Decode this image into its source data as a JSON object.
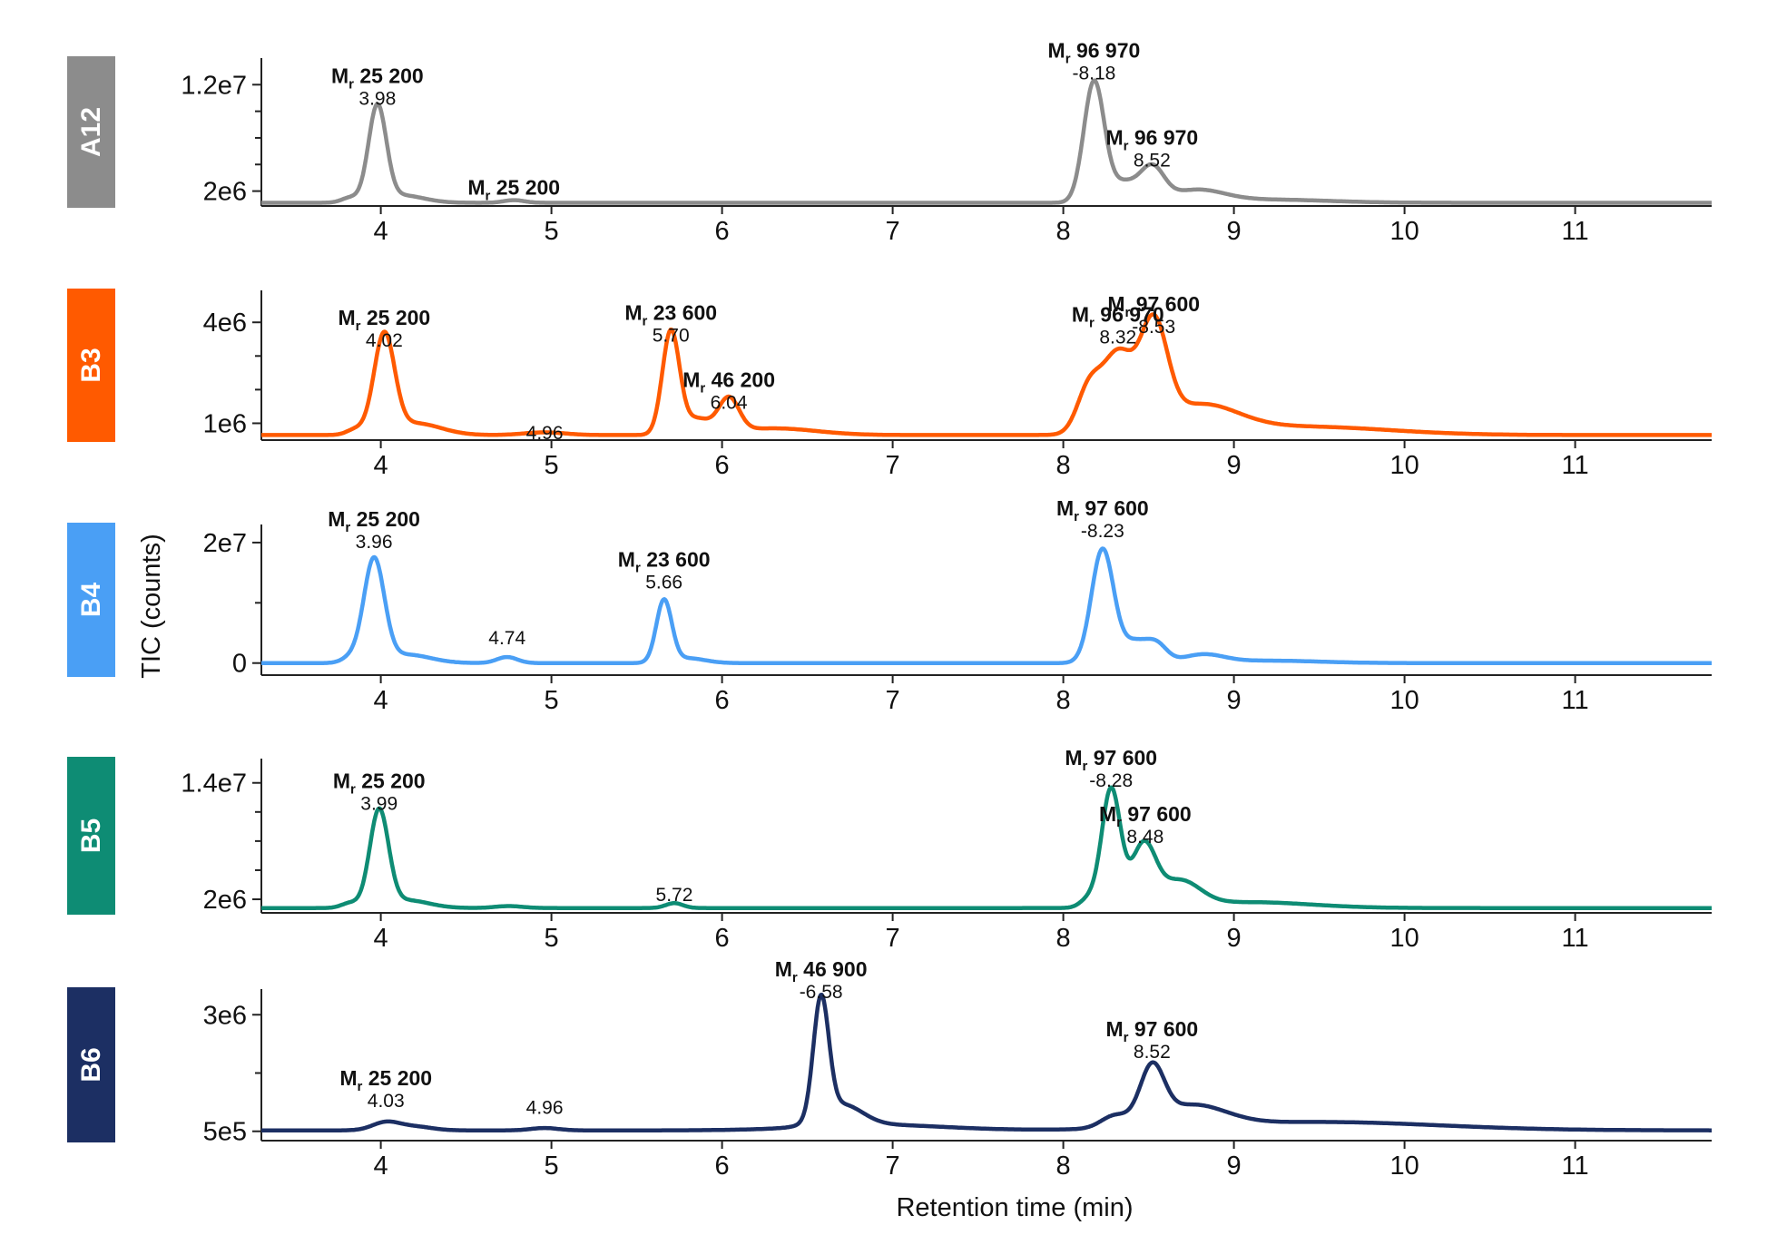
{
  "chart_data": {
    "type": "line",
    "xlabel": "Retention time (min)",
    "ylabel": "TIC (counts)",
    "xlim": [
      3.3,
      11.8
    ],
    "x_ticks": [
      4,
      5,
      6,
      7,
      8,
      9,
      10,
      11
    ],
    "panels": [
      {
        "sample": "A12",
        "color": "#8c8c8c",
        "ylim": [
          600000.0,
          14500000.0
        ],
        "y_ticks": [
          {
            "value": 12000000,
            "label": "1.2e7"
          },
          {
            "value": 2000000,
            "label": "2e6"
          }
        ],
        "y_minor_ticks": [
          4500000,
          7000000,
          9500000
        ],
        "baseline": 900000.0,
        "peaks": [
          {
            "rt": 3.82,
            "height": 450000.0,
            "sigma": 0.05
          },
          {
            "rt": 3.98,
            "height": 8900000.0,
            "sigma": 0.052
          },
          {
            "rt": 4.12,
            "height": 700000.0,
            "sigma": 0.13
          },
          {
            "rt": 4.78,
            "height": 250000.0,
            "sigma": 0.06
          },
          {
            "rt": 8.18,
            "height": 11300000.0,
            "sigma": 0.06
          },
          {
            "rt": 8.35,
            "height": 1800000.0,
            "sigma": 0.08
          },
          {
            "rt": 8.52,
            "height": 3100000.0,
            "sigma": 0.07
          },
          {
            "rt": 8.78,
            "height": 1100000.0,
            "sigma": 0.16
          },
          {
            "rt": 9.2,
            "height": 300000.0,
            "sigma": 0.35
          }
        ],
        "annotations": [
          {
            "rt": "3.98",
            "mass": "25 200",
            "mass_prefix": "M",
            "mass_sub": "r",
            "y": 8900000.0
          },
          {
            "rt": "",
            "mass": "25 200",
            "mass_prefix": "M",
            "mass_sub": "r",
            "y": 300000.0,
            "at": 4.78
          },
          {
            "rt": "-8.18",
            "mass": "96 970",
            "mass_prefix": "M",
            "mass_sub": "r",
            "y": 11300000.0
          },
          {
            "rt": "8.52",
            "mass": "96 970",
            "mass_prefix": "M",
            "mass_sub": "r",
            "y": 3100000.0
          }
        ]
      },
      {
        "sample": "B3",
        "color": "#ff5a00",
        "ylim": [
          500000.0,
          4950000.0
        ],
        "y_ticks": [
          {
            "value": 4000000,
            "label": "4e6"
          },
          {
            "value": 1000000,
            "label": "1e6"
          }
        ],
        "y_minor_ticks": [
          2000000,
          3000000
        ],
        "baseline": 650000.0,
        "peaks": [
          {
            "rt": 3.85,
            "height": 150000.0,
            "sigma": 0.05
          },
          {
            "rt": 4.02,
            "height": 2900000.0,
            "sigma": 0.06
          },
          {
            "rt": 4.2,
            "height": 350000.0,
            "sigma": 0.15
          },
          {
            "rt": 4.96,
            "height": 80000.0,
            "sigma": 0.12
          },
          {
            "rt": 5.7,
            "height": 3050000.0,
            "sigma": 0.05
          },
          {
            "rt": 5.85,
            "height": 450000.0,
            "sigma": 0.08
          },
          {
            "rt": 6.04,
            "height": 1000000.0,
            "sigma": 0.06
          },
          {
            "rt": 6.3,
            "height": 200000.0,
            "sigma": 0.25
          },
          {
            "rt": 8.15,
            "height": 1300000.0,
            "sigma": 0.07
          },
          {
            "rt": 8.32,
            "height": 2300000.0,
            "sigma": 0.09
          },
          {
            "rt": 8.53,
            "height": 3000000.0,
            "sigma": 0.08
          },
          {
            "rt": 8.8,
            "height": 800000.0,
            "sigma": 0.22
          },
          {
            "rt": 9.4,
            "height": 250000.0,
            "sigma": 0.5
          }
        ],
        "annotations": [
          {
            "rt": "4.02",
            "mass": "25 200",
            "mass_prefix": "M",
            "mass_sub": "r",
            "y": 2900000.0
          },
          {
            "rt": "4.96",
            "mass": "",
            "mass_prefix": "",
            "mass_sub": "",
            "y": 150000.0
          },
          {
            "rt": "5.70",
            "mass": "23 600",
            "mass_prefix": "M",
            "mass_sub": "r",
            "y": 3050000.0
          },
          {
            "rt": "6.04",
            "mass": "46 200",
            "mass_prefix": "M",
            "mass_sub": "r",
            "y": 1050000.0
          },
          {
            "rt": "8.32",
            "mass": "96 970",
            "mass_prefix": "M",
            "mass_sub": "r",
            "y": 3000000.0
          },
          {
            "rt": "-8.53",
            "mass": "97 600",
            "mass_prefix": "M",
            "mass_sub": "r",
            "y": 3300000.0
          }
        ]
      },
      {
        "sample": "B4",
        "color": "#4a9ff5",
        "ylim": [
          -2000000.0,
          23000000.0
        ],
        "y_ticks": [
          {
            "value": 20000000,
            "label": "2e7"
          },
          {
            "value": 0,
            "label": "0"
          }
        ],
        "y_minor_ticks": [
          10000000
        ],
        "baseline": 0.0,
        "peaks": [
          {
            "rt": 3.82,
            "height": 800000.0,
            "sigma": 0.05
          },
          {
            "rt": 3.96,
            "height": 17000000.0,
            "sigma": 0.06
          },
          {
            "rt": 4.15,
            "height": 1400000.0,
            "sigma": 0.14
          },
          {
            "rt": 4.74,
            "height": 1000000.0,
            "sigma": 0.06
          },
          {
            "rt": 5.66,
            "height": 10300000.0,
            "sigma": 0.045
          },
          {
            "rt": 5.8,
            "height": 800000.0,
            "sigma": 0.1
          },
          {
            "rt": 8.23,
            "height": 18800000.0,
            "sigma": 0.065
          },
          {
            "rt": 8.42,
            "height": 3500000.0,
            "sigma": 0.08
          },
          {
            "rt": 8.55,
            "height": 2600000.0,
            "sigma": 0.06
          },
          {
            "rt": 8.82,
            "height": 1300000.0,
            "sigma": 0.12
          },
          {
            "rt": 9.2,
            "height": 400000.0,
            "sigma": 0.3
          }
        ],
        "annotations": [
          {
            "rt": "3.96",
            "mass": "25 200",
            "mass_prefix": "M",
            "mass_sub": "r",
            "y": 17000000.0
          },
          {
            "rt": "4.74",
            "mass": "",
            "mass_prefix": "",
            "mass_sub": "",
            "y": 1000000.0
          },
          {
            "rt": "5.66",
            "mass": "23 600",
            "mass_prefix": "M",
            "mass_sub": "r",
            "y": 10300000.0
          },
          {
            "rt": "-8.23",
            "mass": "97 600",
            "mass_prefix": "M",
            "mass_sub": "r",
            "y": 18800000.0
          }
        ]
      },
      {
        "sample": "B5",
        "color": "#0e8c74",
        "ylim": [
          600000.0,
          16500000.0
        ],
        "y_ticks": [
          {
            "value": 14000000,
            "label": "1.4e7"
          },
          {
            "value": 2000000,
            "label": "2e6"
          }
        ],
        "y_minor_ticks": [
          5000000,
          8000000,
          11000000
        ],
        "baseline": 1100000.0,
        "peaks": [
          {
            "rt": 3.82,
            "height": 500000.0,
            "sigma": 0.05
          },
          {
            "rt": 3.99,
            "height": 9900000.0,
            "sigma": 0.055
          },
          {
            "rt": 4.15,
            "height": 800000.0,
            "sigma": 0.13
          },
          {
            "rt": 4.75,
            "height": 200000.0,
            "sigma": 0.08
          },
          {
            "rt": 5.72,
            "height": 500000.0,
            "sigma": 0.05
          },
          {
            "rt": 8.15,
            "height": 900000.0,
            "sigma": 0.05
          },
          {
            "rt": 8.28,
            "height": 12200000.0,
            "sigma": 0.055
          },
          {
            "rt": 8.47,
            "height": 6200000.0,
            "sigma": 0.07
          },
          {
            "rt": 8.68,
            "height": 2600000.0,
            "sigma": 0.12
          },
          {
            "rt": 9.1,
            "height": 600000.0,
            "sigma": 0.35
          }
        ],
        "annotations": [
          {
            "rt": "3.99",
            "mass": "25 200",
            "mass_prefix": "M",
            "mass_sub": "r",
            "y": 9900000.0
          },
          {
            "rt": "5.72",
            "mass": "",
            "mass_prefix": "",
            "mass_sub": "",
            "y": 500000.0
          },
          {
            "rt": "-8.28",
            "mass": "97 600",
            "mass_prefix": "M",
            "mass_sub": "r",
            "y": 12300000.0
          },
          {
            "rt": "8.48",
            "mass": "97 600",
            "mass_prefix": "M",
            "mass_sub": "r",
            "y": 6500000.0
          }
        ]
      },
      {
        "sample": "B6",
        "color": "#1c2f63",
        "ylim": [
          300000.0,
          3550000.0
        ],
        "y_ticks": [
          {
            "value": 3000000,
            "label": "3e6"
          },
          {
            "value": 500000,
            "label": "5e5"
          }
        ],
        "y_minor_ticks": [
          1750000
        ],
        "baseline": 520000.0,
        "peaks": [
          {
            "rt": 4.03,
            "height": 170000.0,
            "sigma": 0.08
          },
          {
            "rt": 4.2,
            "height": 80000.0,
            "sigma": 0.1
          },
          {
            "rt": 4.96,
            "height": 50000.0,
            "sigma": 0.08
          },
          {
            "rt": 6.58,
            "height": 2550000.0,
            "sigma": 0.045
          },
          {
            "rt": 6.7,
            "height": 450000.0,
            "sigma": 0.12
          },
          {
            "rt": 6.9,
            "height": 120000.0,
            "sigma": 0.4
          },
          {
            "rt": 8.3,
            "height": 250000.0,
            "sigma": 0.08
          },
          {
            "rt": 8.52,
            "height": 1150000.0,
            "sigma": 0.07
          },
          {
            "rt": 8.75,
            "height": 450000.0,
            "sigma": 0.2
          },
          {
            "rt": 9.5,
            "height": 180000.0,
            "sigma": 0.7
          }
        ],
        "annotations": [
          {
            "rt": "4.03",
            "mass": "25 200",
            "mass_prefix": "M",
            "mass_sub": "r",
            "y": 750000.0
          },
          {
            "rt": "4.96",
            "mass": "",
            "mass_prefix": "",
            "mass_sub": "",
            "y": 600000.0
          },
          {
            "rt": "-6.58",
            "mass": "46 900",
            "mass_prefix": "M",
            "mass_sub": "r",
            "y": 3080000.0
          },
          {
            "rt": "8.52",
            "mass": "97 600",
            "mass_prefix": "M",
            "mass_sub": "r",
            "y": 1800000.0
          }
        ]
      }
    ]
  }
}
